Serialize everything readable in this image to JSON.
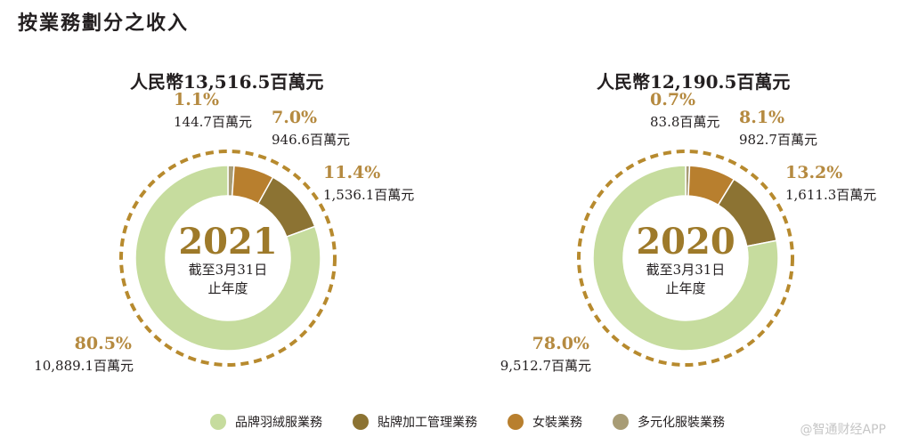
{
  "title": "按業務劃分之收入",
  "colors": {
    "brand": "#c6dc9e",
    "oem": "#8c7333",
    "women": "#b87f2e",
    "diversified": "#a89c75",
    "dashed_ring": "#b78a2e",
    "year_text": "#9e7a2a",
    "pct_label": "#b58a40"
  },
  "legend": [
    {
      "label": "品牌羽絨服業務",
      "color": "#c6dc9e"
    },
    {
      "label": "貼牌加工管理業務",
      "color": "#8c7333"
    },
    {
      "label": "女裝業務",
      "color": "#b87f2e"
    },
    {
      "label": "多元化服裝業務",
      "color": "#a89c75"
    }
  ],
  "watermark": "@智通财经APP",
  "chart_data": [
    {
      "type": "pie",
      "title": "人民幣13,516.5百萬元",
      "center_year": "2021",
      "center_line1": "截至3月31日",
      "center_line2": "止年度",
      "slices": [
        {
          "name": "多元化服裝業務",
          "pct_label": "1.1%",
          "amount_label": "144.7百萬元",
          "value": 144.7,
          "color": "#a89c75"
        },
        {
          "name": "女裝業務",
          "pct_label": "7.0%",
          "amount_label": "946.6百萬元",
          "value": 946.6,
          "color": "#b87f2e"
        },
        {
          "name": "貼牌加工管理業務",
          "pct_label": "11.4%",
          "amount_label": "1,536.1百萬元",
          "value": 1536.1,
          "color": "#8c7333"
        },
        {
          "name": "品牌羽絨服業務",
          "pct_label": "80.5%",
          "amount_label": "10,889.1百萬元",
          "value": 10889.1,
          "color": "#c6dc9e"
        }
      ]
    },
    {
      "type": "pie",
      "title": "人民幣12,190.5百萬元",
      "center_year": "2020",
      "center_line1": "截至3月31日",
      "center_line2": "止年度",
      "slices": [
        {
          "name": "多元化服裝業務",
          "pct_label": "0.7%",
          "amount_label": "83.8百萬元",
          "value": 83.8,
          "color": "#a89c75"
        },
        {
          "name": "女裝業務",
          "pct_label": "8.1%",
          "amount_label": "982.7百萬元",
          "value": 982.7,
          "color": "#b87f2e"
        },
        {
          "name": "貼牌加工管理業務",
          "pct_label": "13.2%",
          "amount_label": "1,611.3百萬元",
          "value": 1611.3,
          "color": "#8c7333"
        },
        {
          "name": "品牌羽絨服業務",
          "pct_label": "78.0%",
          "amount_label": "9,512.7百萬元",
          "value": 9512.7,
          "color": "#c6dc9e"
        }
      ]
    }
  ]
}
